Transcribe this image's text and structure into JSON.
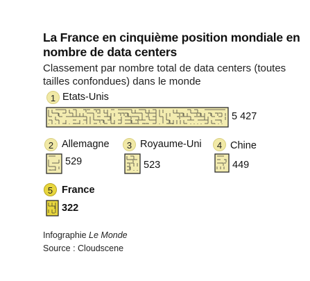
{
  "header": {
    "title": "La France en cinquième position mondiale en nombre de data centers",
    "subtitle": "Classement par nombre total de data centers (toutes tailles confondues) dans le monde"
  },
  "chart_data": {
    "type": "bar",
    "title": "La France en cinquième position mondiale en nombre de data centers",
    "subtitle": "Classement par nombre total de data centers (toutes tailles confondues) dans le monde",
    "categories": [
      "Etats-Unis",
      "Allemagne",
      "Royaume-Uni",
      "Chine",
      "France"
    ],
    "ranks": [
      "1",
      "2",
      "3",
      "4",
      "5"
    ],
    "values": [
      5427,
      529,
      523,
      449,
      322
    ],
    "value_labels": [
      "5 427",
      "529",
      "523",
      "449",
      "322"
    ],
    "highlight": "France",
    "xlabel": "",
    "ylabel": "",
    "grid": false
  },
  "colors": {
    "chip_fill": "#f3ecb0",
    "chip_fill_highlight": "#e8d63e",
    "chip_stroke": "#2b2b2b",
    "badge_fill": "#f1e9a6",
    "badge_fill_highlight": "#e8d63e"
  },
  "footer": {
    "credit_prefix": "Infographie ",
    "credit_name": "Le Monde",
    "source": "Source : Cloudscene"
  }
}
